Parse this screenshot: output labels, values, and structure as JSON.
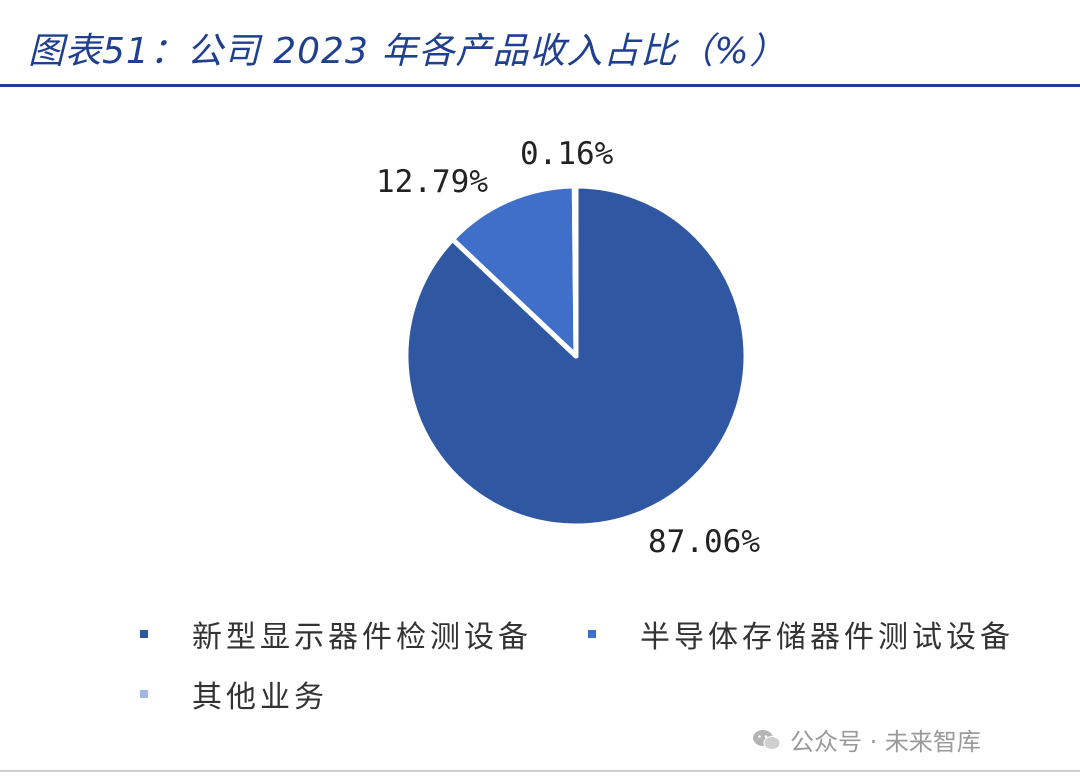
{
  "header": {
    "title": "图表51：公司 2023 年各产品收入占比（%）"
  },
  "chart_data": {
    "type": "pie",
    "categories": [
      "新型显示器件检测设备",
      "半导体存储器件测试设备",
      "其他业务"
    ],
    "values": [
      87.06,
      12.79,
      0.16
    ],
    "value_labels": [
      "87.06%",
      "12.79%",
      "0.16%"
    ],
    "colors": [
      "#2f57a2",
      "#3f6fc8",
      "#9fb9e6"
    ],
    "legend_position": "bottom",
    "title": "图表51：公司 2023 年各产品收入占比（%）"
  },
  "legend": {
    "items": [
      {
        "label": "新型显示器件检测设备",
        "color": "#2f57a2"
      },
      {
        "label": "半导体存储器件测试设备",
        "color": "#3f6fc8"
      },
      {
        "label": "其他业务",
        "color": "#9fb9e6"
      }
    ]
  },
  "watermark": {
    "text": "公众号 · 未来智库",
    "icon": "wechat-icon"
  }
}
